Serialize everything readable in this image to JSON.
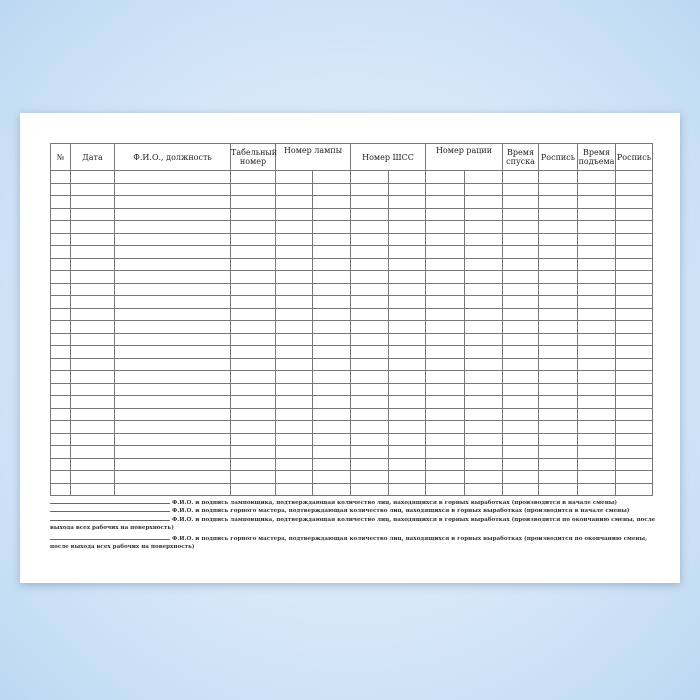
{
  "table": {
    "headers": [
      "№",
      "Дата",
      "Ф.И.О., должность",
      "Табельный номер",
      "Номер лампы",
      "Номер ШСС",
      "Номер рации",
      "Время спуска",
      "Роспись",
      "Время подъема",
      "Роспись"
    ],
    "row_count": 26
  },
  "footer": [
    "Ф.И.О. и подпись ламповщика, подтверждающая количество лиц, находящихся в горных выработках (производится в начале смены)",
    "Ф.И.О. и подпись горного мастера, подтверждающая количество лиц, находящихся в горных выработках (производится в начале смены)",
    "Ф.И.О. и подпись ламповщика, подтверждающая количество лиц, находящихся в горных выработках (производится по окончанию смены, после выхода всех рабочих на поверхность)",
    "Ф.И.О. и подпись горного мастера, подтверждающая количество лиц, находящихся в горных выработках (производится по окончанию смены, после выхода всех рабочих на поверхность)"
  ]
}
